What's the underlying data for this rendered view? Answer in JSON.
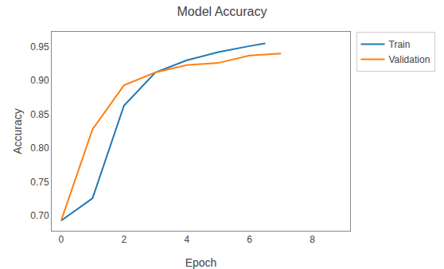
{
  "chart_data": {
    "type": "line",
    "title": "Model Accuracy",
    "xlabel": "Epoch",
    "ylabel": "Accuracy",
    "series": [
      {
        "name": "Train",
        "color": "#1f77b4",
        "x": [
          0,
          1,
          2,
          3,
          4,
          5,
          6,
          6.5
        ],
        "values": [
          0.693,
          0.726,
          0.863,
          0.912,
          0.93,
          0.942,
          0.951,
          0.955
        ]
      },
      {
        "name": "Validation",
        "color": "#ff7f0e",
        "x": [
          0,
          1,
          2,
          3,
          4,
          5,
          6,
          7
        ],
        "values": [
          0.693,
          0.828,
          0.893,
          0.912,
          0.923,
          0.926,
          0.937,
          0.94
        ]
      }
    ],
    "xlim": [
      -0.3,
      9.2
    ],
    "xticks": [
      0,
      2,
      4,
      6,
      8
    ],
    "ylim": [
      0.678,
      0.972
    ],
    "yticks": [
      {
        "value": 0.7,
        "label": "0.70"
      },
      0.75,
      {
        "value": 0.8,
        "label": "0.80"
      },
      0.85,
      {
        "value": 0.9,
        "label": "0.90"
      },
      0.95
    ],
    "grid": false,
    "legend": "upper right"
  }
}
